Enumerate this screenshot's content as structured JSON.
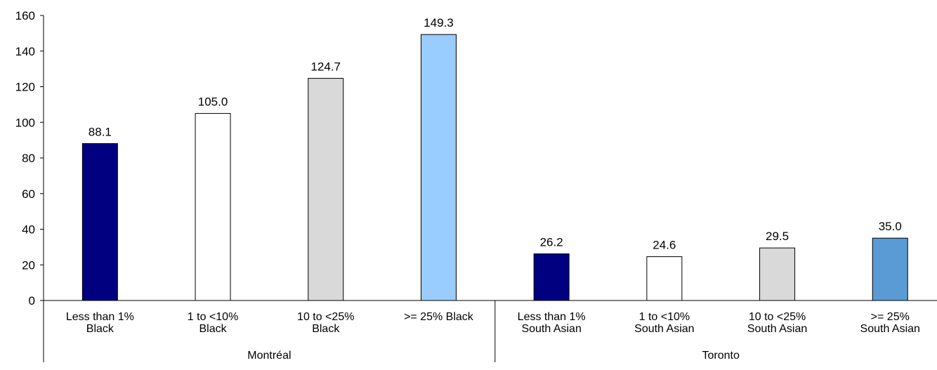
{
  "chart_data": {
    "type": "bar",
    "title": "",
    "xlabel": "",
    "ylabel": "",
    "ylim": [
      0,
      160
    ],
    "yticks": [
      0,
      20,
      40,
      60,
      80,
      100,
      120,
      140,
      160
    ],
    "grid": false,
    "legend": "none",
    "groups": [
      {
        "name": "Montréal",
        "categories": [
          [
            "Less than 1%",
            "Black"
          ],
          [
            "1 to <10%",
            "Black"
          ],
          [
            "10 to <25%",
            "Black"
          ],
          [
            ">= 25% Black"
          ]
        ],
        "values": [
          88.1,
          105.0,
          124.7,
          149.3
        ],
        "labels": [
          "88.1",
          "105.0",
          "124.7",
          "149.3"
        ],
        "colors": [
          "#000080",
          "#ffffff",
          "#d9d9d9",
          "#99ccff"
        ]
      },
      {
        "name": "Toronto",
        "categories": [
          [
            "Less than 1%",
            "South Asian"
          ],
          [
            "1 to <10%",
            "South Asian"
          ],
          [
            "10 to <25%",
            "South Asian"
          ],
          [
            ">= 25%",
            "South Asian"
          ]
        ],
        "values": [
          26.2,
          24.6,
          29.5,
          35.0
        ],
        "labels": [
          "26.2",
          "24.6",
          "29.5",
          "35.0"
        ],
        "colors": [
          "#000080",
          "#ffffff",
          "#d9d9d9",
          "#5b9bd5"
        ]
      }
    ]
  }
}
